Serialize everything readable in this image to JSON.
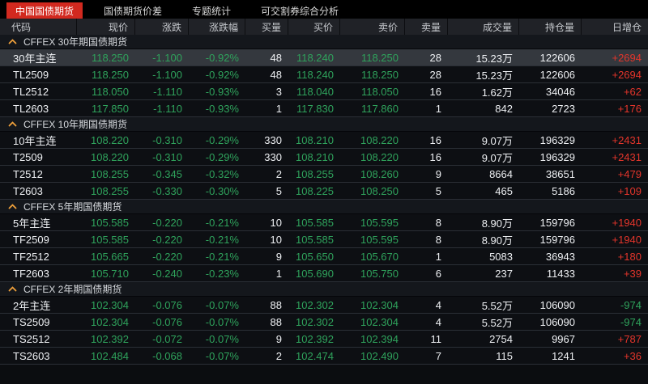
{
  "tabs": [
    {
      "label": "中国国债期货",
      "active": true
    },
    {
      "label": "国债期货价差",
      "active": false
    },
    {
      "label": "专题统计",
      "active": false
    },
    {
      "label": "可交割券综合分析",
      "active": false
    }
  ],
  "table": {
    "columns": [
      "代码",
      "现价",
      "涨跌",
      "涨跌幅",
      "买量",
      "买价",
      "卖价",
      "卖量",
      "成交量",
      "持仓量",
      "日增仓"
    ]
  },
  "sections": [
    {
      "title": "CFFEX 30年期国债期货",
      "rows": [
        {
          "code": "30年主连",
          "last": "118.250",
          "change": "-1.100",
          "change_pct": "-0.92%",
          "bid_vol": "48",
          "bid": "118.240",
          "ask": "118.250",
          "ask_vol": "28",
          "volume": "15.23万",
          "open_interest": "122606",
          "oi_change": "+2694",
          "selected": true
        },
        {
          "code": "TL2509",
          "last": "118.250",
          "change": "-1.100",
          "change_pct": "-0.92%",
          "bid_vol": "48",
          "bid": "118.240",
          "ask": "118.250",
          "ask_vol": "28",
          "volume": "15.23万",
          "open_interest": "122606",
          "oi_change": "+2694",
          "selected": false
        },
        {
          "code": "TL2512",
          "last": "118.050",
          "change": "-1.110",
          "change_pct": "-0.93%",
          "bid_vol": "3",
          "bid": "118.040",
          "ask": "118.050",
          "ask_vol": "16",
          "volume": "1.62万",
          "open_interest": "34046",
          "oi_change": "+62",
          "selected": false
        },
        {
          "code": "TL2603",
          "last": "117.850",
          "change": "-1.110",
          "change_pct": "-0.93%",
          "bid_vol": "1",
          "bid": "117.830",
          "ask": "117.860",
          "ask_vol": "1",
          "volume": "842",
          "open_interest": "2723",
          "oi_change": "+176",
          "selected": false
        }
      ]
    },
    {
      "title": "CFFEX 10年期国债期货",
      "rows": [
        {
          "code": "10年主连",
          "last": "108.220",
          "change": "-0.310",
          "change_pct": "-0.29%",
          "bid_vol": "330",
          "bid": "108.210",
          "ask": "108.220",
          "ask_vol": "16",
          "volume": "9.07万",
          "open_interest": "196329",
          "oi_change": "+2431",
          "selected": false
        },
        {
          "code": "T2509",
          "last": "108.220",
          "change": "-0.310",
          "change_pct": "-0.29%",
          "bid_vol": "330",
          "bid": "108.210",
          "ask": "108.220",
          "ask_vol": "16",
          "volume": "9.07万",
          "open_interest": "196329",
          "oi_change": "+2431",
          "selected": false
        },
        {
          "code": "T2512",
          "last": "108.255",
          "change": "-0.345",
          "change_pct": "-0.32%",
          "bid_vol": "2",
          "bid": "108.255",
          "ask": "108.260",
          "ask_vol": "9",
          "volume": "8664",
          "open_interest": "38651",
          "oi_change": "+479",
          "selected": false
        },
        {
          "code": "T2603",
          "last": "108.255",
          "change": "-0.330",
          "change_pct": "-0.30%",
          "bid_vol": "5",
          "bid": "108.225",
          "ask": "108.250",
          "ask_vol": "5",
          "volume": "465",
          "open_interest": "5186",
          "oi_change": "+109",
          "selected": false
        }
      ]
    },
    {
      "title": "CFFEX 5年期国债期货",
      "rows": [
        {
          "code": "5年主连",
          "last": "105.585",
          "change": "-0.220",
          "change_pct": "-0.21%",
          "bid_vol": "10",
          "bid": "105.585",
          "ask": "105.595",
          "ask_vol": "8",
          "volume": "8.90万",
          "open_interest": "159796",
          "oi_change": "+1940",
          "selected": false
        },
        {
          "code": "TF2509",
          "last": "105.585",
          "change": "-0.220",
          "change_pct": "-0.21%",
          "bid_vol": "10",
          "bid": "105.585",
          "ask": "105.595",
          "ask_vol": "8",
          "volume": "8.90万",
          "open_interest": "159796",
          "oi_change": "+1940",
          "selected": false
        },
        {
          "code": "TF2512",
          "last": "105.665",
          "change": "-0.220",
          "change_pct": "-0.21%",
          "bid_vol": "9",
          "bid": "105.650",
          "ask": "105.670",
          "ask_vol": "1",
          "volume": "5083",
          "open_interest": "36943",
          "oi_change": "+180",
          "selected": false
        },
        {
          "code": "TF2603",
          "last": "105.710",
          "change": "-0.240",
          "change_pct": "-0.23%",
          "bid_vol": "1",
          "bid": "105.690",
          "ask": "105.750",
          "ask_vol": "6",
          "volume": "237",
          "open_interest": "11433",
          "oi_change": "+39",
          "selected": false
        }
      ]
    },
    {
      "title": "CFFEX 2年期国债期货",
      "rows": [
        {
          "code": "2年主连",
          "last": "102.304",
          "change": "-0.076",
          "change_pct": "-0.07%",
          "bid_vol": "88",
          "bid": "102.302",
          "ask": "102.304",
          "ask_vol": "4",
          "volume": "5.52万",
          "open_interest": "106090",
          "oi_change": "-974",
          "selected": false
        },
        {
          "code": "TS2509",
          "last": "102.304",
          "change": "-0.076",
          "change_pct": "-0.07%",
          "bid_vol": "88",
          "bid": "102.302",
          "ask": "102.304",
          "ask_vol": "4",
          "volume": "5.52万",
          "open_interest": "106090",
          "oi_change": "-974",
          "selected": false
        },
        {
          "code": "TS2512",
          "last": "102.392",
          "change": "-0.072",
          "change_pct": "-0.07%",
          "bid_vol": "9",
          "bid": "102.392",
          "ask": "102.394",
          "ask_vol": "11",
          "volume": "2754",
          "open_interest": "9967",
          "oi_change": "+787",
          "selected": false
        },
        {
          "code": "TS2603",
          "last": "102.484",
          "change": "-0.068",
          "change_pct": "-0.07%",
          "bid_vol": "2",
          "bid": "102.474",
          "ask": "102.490",
          "ask_vol": "7",
          "volume": "115",
          "open_interest": "1241",
          "oi_change": "+36",
          "selected": false
        }
      ]
    }
  ],
  "colors": {
    "up_red": "#e4352b",
    "down_green": "#2fa35c",
    "active_tab_red": "#d2291f",
    "caret_orange": "#efa03b"
  }
}
